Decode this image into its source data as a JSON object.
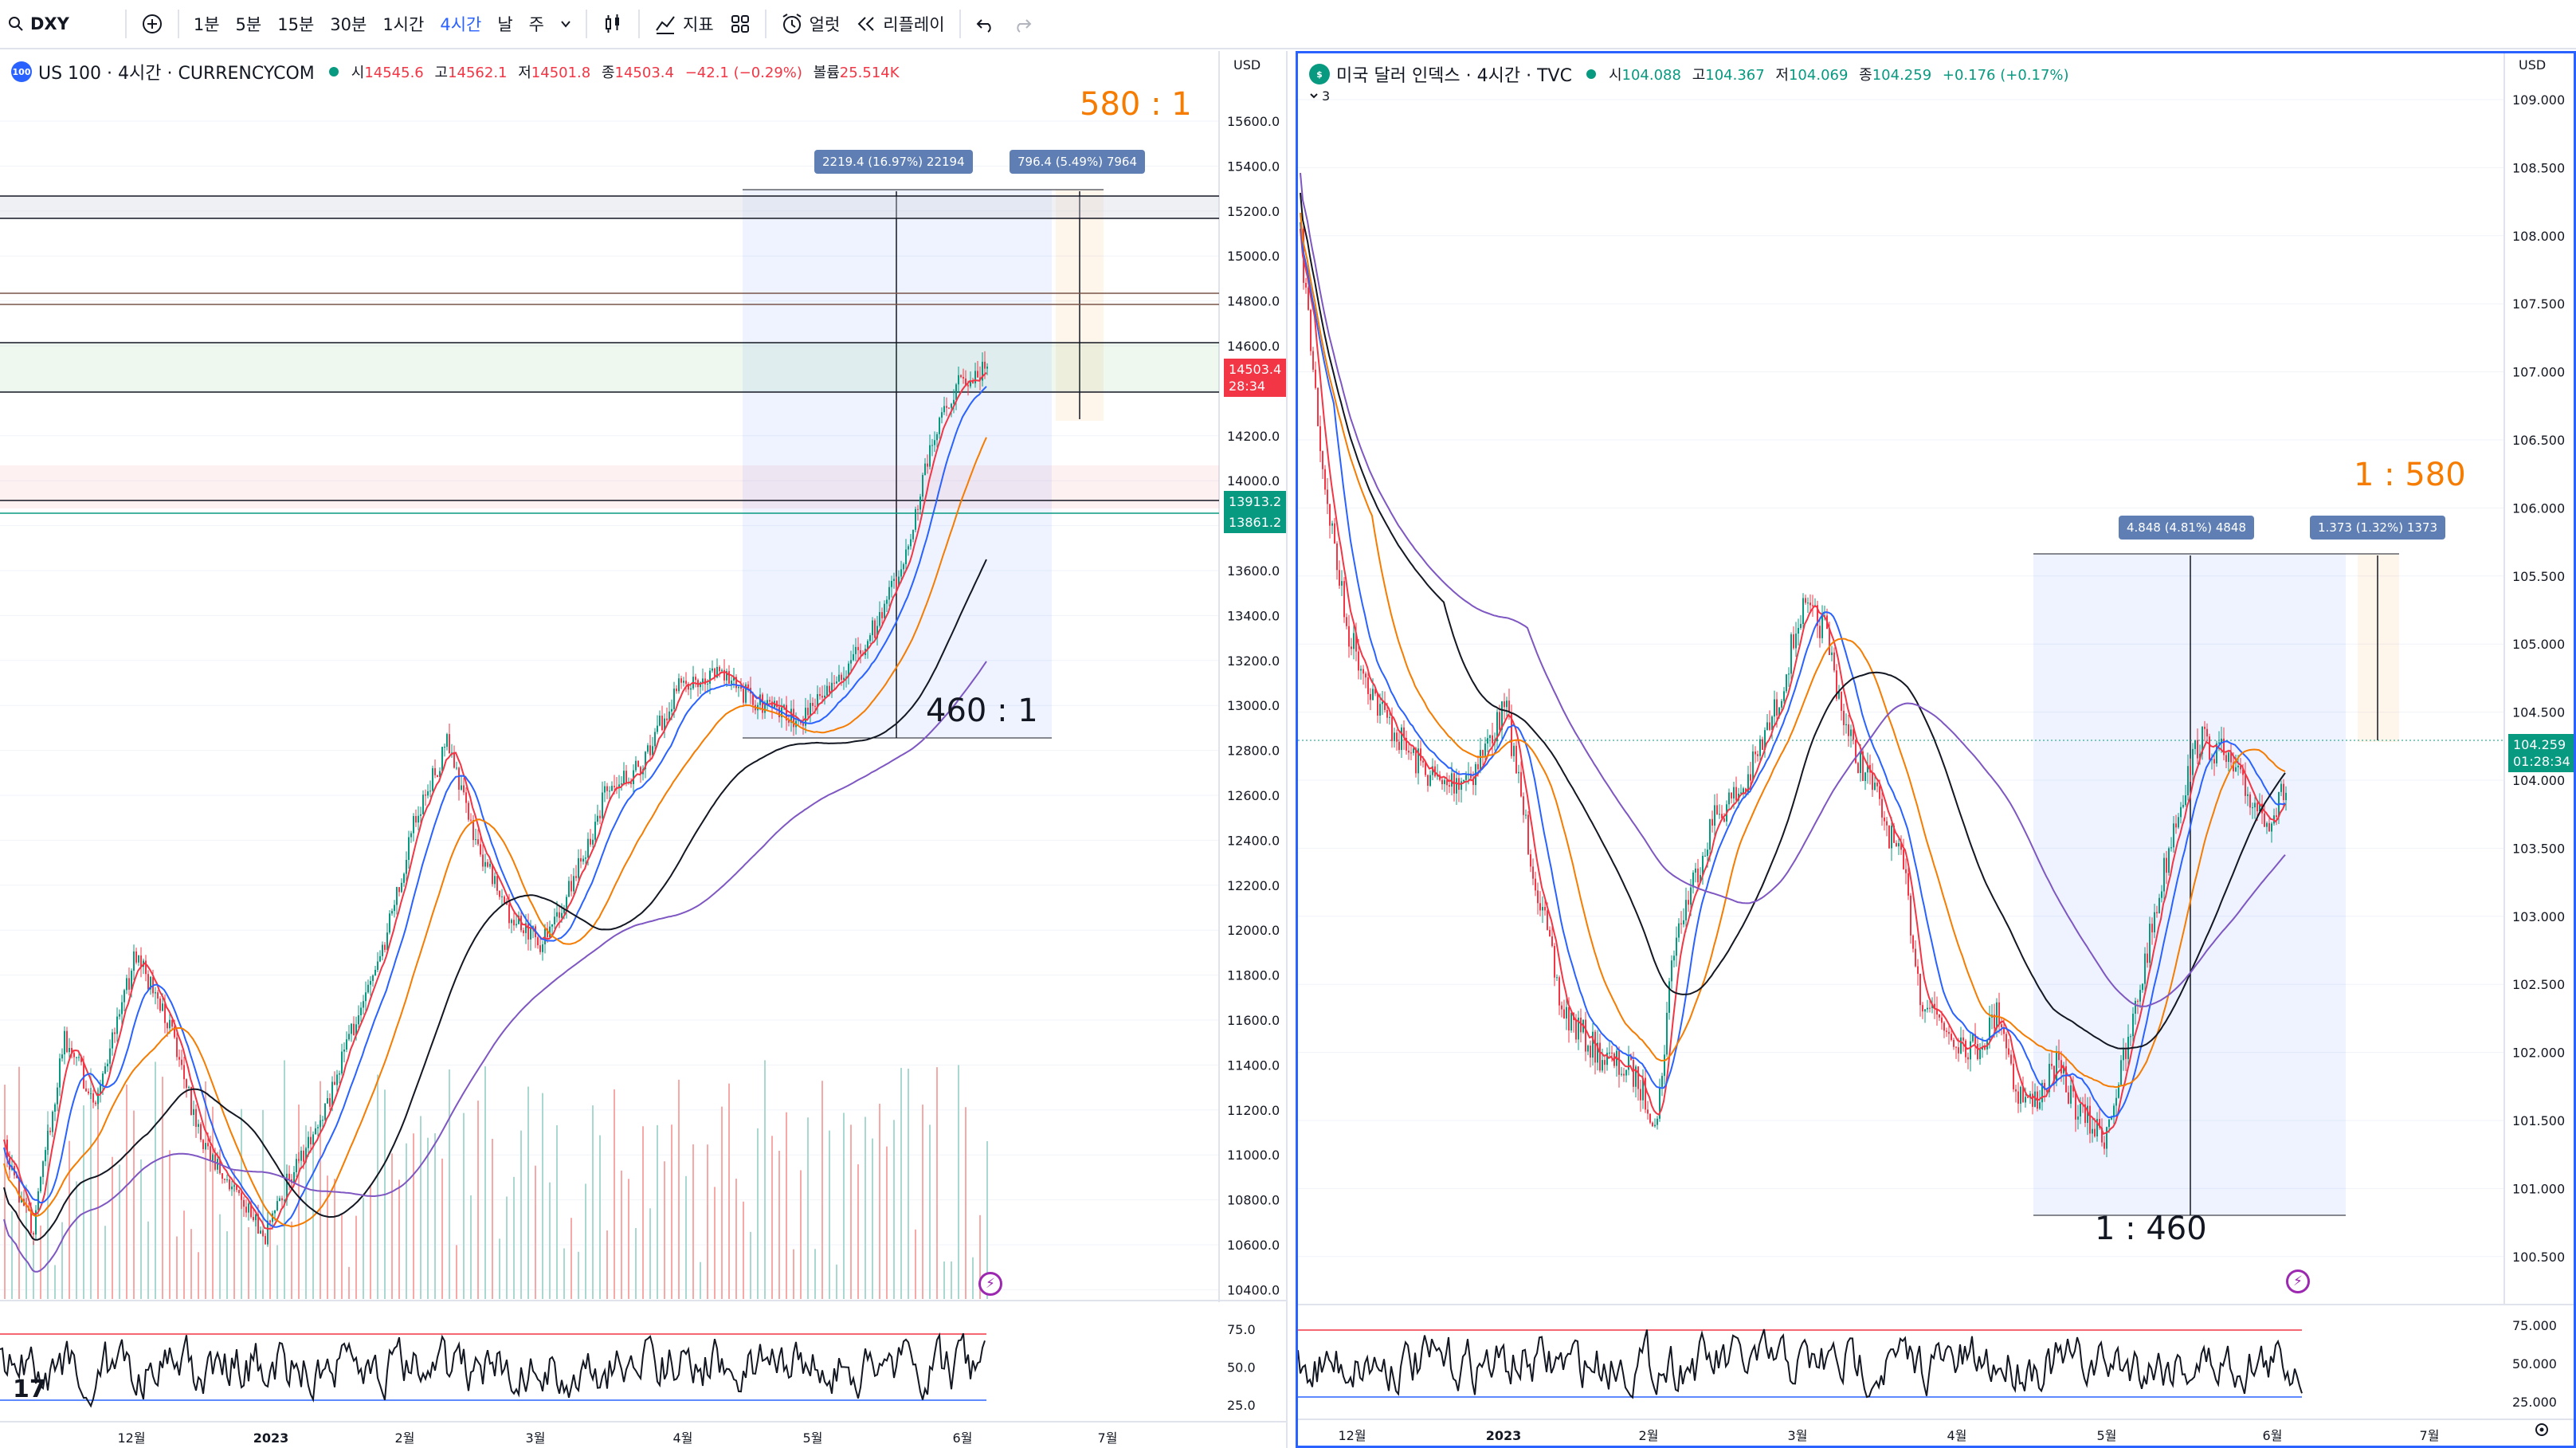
{
  "toolbar": {
    "symbol": "DXY",
    "intervals": [
      "1분",
      "5분",
      "15분",
      "30분",
      "1시간",
      "4시간",
      "날",
      "주"
    ],
    "active_interval": "4시간",
    "indicators_label": "지표",
    "alerts_label": "얼럿",
    "replay_label": "리플레이"
  },
  "left": {
    "badge_text": "100",
    "badge_color": "#2962ff",
    "title": "US 100 · 4시간 · CURRENCYCOM",
    "ohlc": [
      {
        "label": "시",
        "value": "14545.6"
      },
      {
        "label": "고",
        "value": "14562.1"
      },
      {
        "label": "저",
        "value": "14501.8"
      },
      {
        "label": "종",
        "value": "14503.4"
      },
      {
        "label": "",
        "value": "−42.1 (−0.29%)"
      },
      {
        "label": "볼륨",
        "value": "25.514K"
      }
    ],
    "currency": "USD",
    "price_ticks": [
      "15600.0",
      "15400.0",
      "15200.0",
      "15000.0",
      "14800.0",
      "14600.0",
      "14400.0",
      "14200.0",
      "14000.0",
      "13800.0",
      "13600.0",
      "13400.0",
      "13200.0",
      "13000.0",
      "12800.0",
      "12600.0",
      "12400.0",
      "12200.0",
      "12000.0",
      "11800.0",
      "11600.0",
      "11400.0",
      "11200.0",
      "11000.0",
      "10800.0",
      "10600.0",
      "10400.0"
    ],
    "rsi_ticks": [
      "75.0",
      "50.0",
      "25.0"
    ],
    "time_ticks": [
      "12월",
      "2023",
      "2월",
      "3월",
      "4월",
      "5월",
      "6월",
      "7월"
    ],
    "last_price": "14503.4",
    "countdown": "28:34",
    "level_1": "13913.2",
    "level_2": "13861.2",
    "measure_1": "2219.4 (16.97%) 22194",
    "measure_2": "796.4 (5.49%) 7964",
    "ratio_label": "580 : 1",
    "counter_label": "460 : 1",
    "colors": {
      "last_price": "#f23645",
      "level": "#089981",
      "ratio": "#f57c00"
    }
  },
  "right": {
    "badge_text": "$",
    "badge_color": "#089981",
    "title": "미국 달러 인덱스 · 4시간 · TVC",
    "collapse_count": "3",
    "ohlc": [
      {
        "label": "시",
        "value": "104.088"
      },
      {
        "label": "고",
        "value": "104.367"
      },
      {
        "label": "저",
        "value": "104.069"
      },
      {
        "label": "종",
        "value": "104.259"
      },
      {
        "label": "",
        "value": "+0.176 (+0.17%)"
      }
    ],
    "currency": "USD",
    "price_ticks": [
      "109.000",
      "108.500",
      "108.000",
      "107.500",
      "107.000",
      "106.500",
      "106.000",
      "105.500",
      "105.000",
      "104.500",
      "104.000",
      "103.500",
      "103.000",
      "102.500",
      "102.000",
      "101.500",
      "101.000",
      "100.500"
    ],
    "rsi_ticks": [
      "75.000",
      "50.000",
      "25.000"
    ],
    "time_ticks": [
      "12월",
      "2023",
      "2월",
      "3월",
      "4월",
      "5월",
      "6월",
      "7월"
    ],
    "last_price": "104.259",
    "countdown": "01:28:34",
    "measure_1": "4.848 (4.81%) 4848",
    "measure_2": "1.373 (1.32%) 1373",
    "ratio_label": "1 : 580",
    "counter_label": "1 : 460",
    "colors": {
      "last_price": "#089981",
      "ratio": "#f57c00"
    }
  }
}
